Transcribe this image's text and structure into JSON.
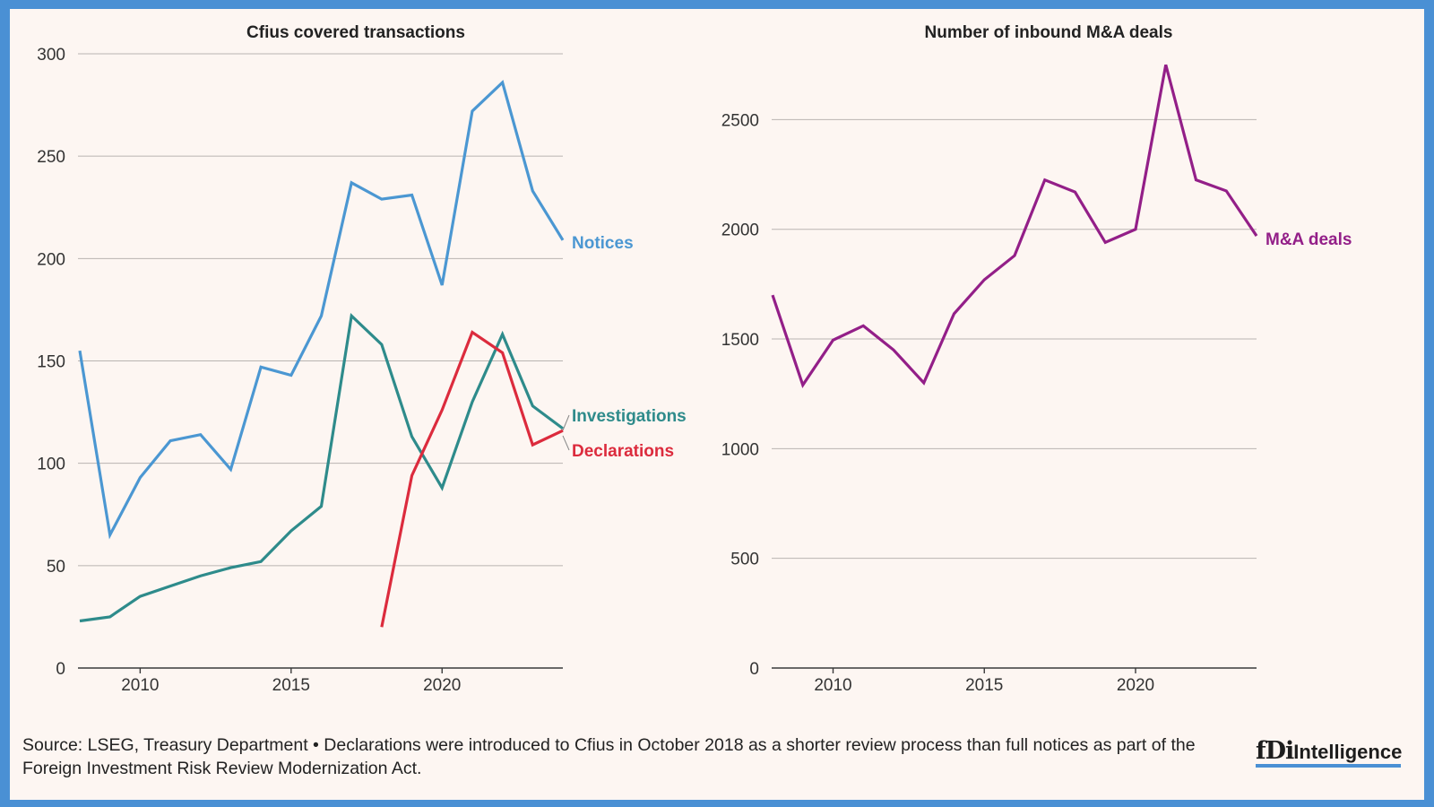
{
  "chart_data": [
    {
      "type": "line",
      "title": "Cfius covered transactions",
      "x": [
        2008,
        2009,
        2010,
        2011,
        2012,
        2013,
        2014,
        2015,
        2016,
        2017,
        2018,
        2019,
        2020,
        2021,
        2022,
        2023,
        2024
      ],
      "xticks": [
        "2010",
        "2015",
        "2020"
      ],
      "yticks": [
        "0",
        "50",
        "100",
        "150",
        "200",
        "250",
        "300"
      ],
      "ylim": [
        0,
        300
      ],
      "grid": true,
      "series": [
        {
          "name": "Notices",
          "color": "#4b97d2",
          "values": [
            155,
            65,
            93,
            111,
            114,
            97,
            147,
            143,
            172,
            237,
            229,
            231,
            187,
            272,
            286,
            233,
            209
          ]
        },
        {
          "name": "Investigations",
          "color": "#2e8b8b",
          "values": [
            23,
            25,
            35,
            40,
            45,
            49,
            52,
            67,
            79,
            172,
            158,
            113,
            88,
            130,
            163,
            128,
            117
          ]
        },
        {
          "name": "Declarations",
          "color": "#dc2b3d",
          "values": [
            null,
            null,
            null,
            null,
            null,
            null,
            null,
            null,
            null,
            null,
            20,
            94,
            126,
            164,
            154,
            109,
            116
          ]
        }
      ]
    },
    {
      "type": "line",
      "title": "Number of inbound M&A deals",
      "x": [
        2008,
        2009,
        2010,
        2011,
        2012,
        2013,
        2014,
        2015,
        2016,
        2017,
        2018,
        2019,
        2020,
        2021,
        2022,
        2023,
        2024
      ],
      "xticks": [
        "2010",
        "2015",
        "2020"
      ],
      "yticks": [
        "0",
        "500",
        "1000",
        "1500",
        "2000",
        "2500"
      ],
      "ylim": [
        0,
        2800
      ],
      "grid": true,
      "series": [
        {
          "name": "M&A deals",
          "color": "#931f88",
          "values": [
            1700,
            1290,
            1495,
            1560,
            1450,
            1300,
            1615,
            1770,
            1880,
            2225,
            2170,
            1940,
            2000,
            2750,
            2225,
            2175,
            1970
          ]
        }
      ]
    }
  ],
  "footer": {
    "source": "Source: LSEG, Treasury Department • Declarations were introduced to Cfius in October 2018 as a shorter review process than full notices as part of the Foreign Investment Risk Review Modernization Act."
  },
  "logo": {
    "mark": "fDi",
    "word": "Intelligence",
    "bar_color": "#4a90d4"
  }
}
